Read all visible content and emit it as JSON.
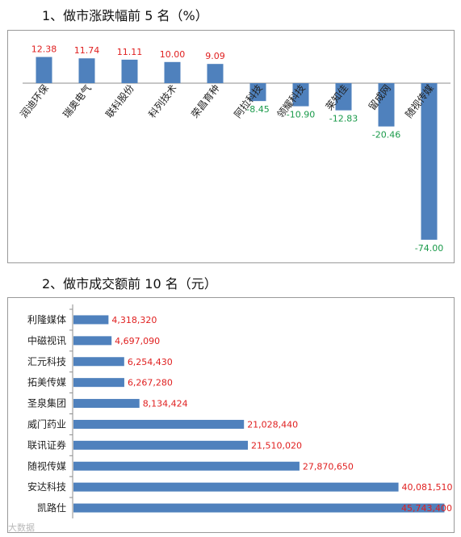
{
  "headings": {
    "chart1": "1、做市涨跌幅前 5 名（%）",
    "chart2": "2、做市成交额前 10 名（元）"
  },
  "watermark": "大数据",
  "colors": {
    "bar": "#4f81bd",
    "label_up": "#e02020",
    "label_down": "#1a9a4a"
  },
  "chart_data": [
    {
      "type": "bar",
      "title": "",
      "xlabel": "",
      "ylabel": "",
      "ylim": [
        -80,
        15
      ],
      "grid": false,
      "categories": [
        "润迪环保",
        "瑞奥电气",
        "联科股份",
        "科列技术",
        "荣昌育种",
        "阿拉科技",
        "领耀科技",
        "莱知佳",
        "留成网",
        "随视传媒"
      ],
      "value_labels": [
        "12.38",
        "11.74",
        "11.11",
        "10.00",
        "9.09",
        "-8.45",
        "-10.90",
        "-12.83",
        "-20.46",
        "-74.00"
      ],
      "values": [
        12.38,
        11.74,
        11.11,
        10.0,
        9.09,
        -8.45,
        -10.9,
        -12.83,
        -20.46,
        -74.0
      ]
    },
    {
      "type": "bar",
      "orientation": "horizontal",
      "title": "",
      "xlabel": "",
      "ylabel": "",
      "xlim": [
        0,
        46000000
      ],
      "grid": false,
      "categories": [
        "利隆媒体",
        "中磁视讯",
        "汇元科技",
        "拓美传媒",
        "圣泉集团",
        "威门药业",
        "联讯证券",
        "随视传媒",
        "安达科技",
        "凯路仕"
      ],
      "value_labels": [
        "4,318,320",
        "4,697,090",
        "6,254,430",
        "6,267,280",
        "8,134,424",
        "21,028,440",
        "21,510,020",
        "27,870,650",
        "40,081,510",
        "45,743,400"
      ],
      "values": [
        4318320,
        4697090,
        6254430,
        6267280,
        8134424,
        21028440,
        21510020,
        27870650,
        40081510,
        45743400
      ]
    }
  ]
}
